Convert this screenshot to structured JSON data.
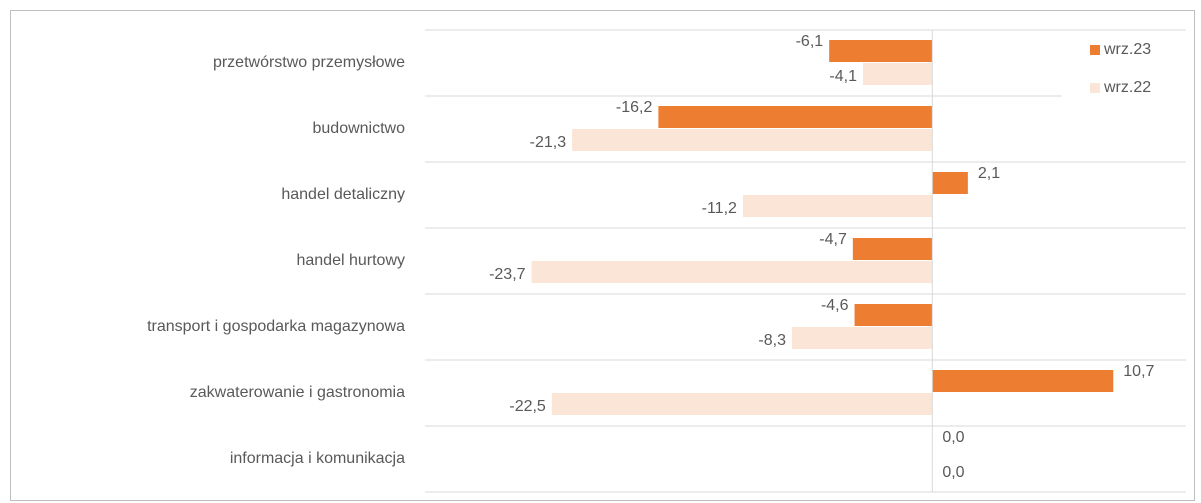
{
  "chart_data": {
    "type": "bar",
    "orientation": "horizontal",
    "categories": [
      "przetwórstwo przemysłowe",
      "budownictwo",
      "handel detaliczny",
      "handel hurtowy",
      "transport i gospodarka magazynowa",
      "zakwaterowanie i gastronomia",
      "informacja i komunikacja"
    ],
    "series": [
      {
        "name": "wrz.23",
        "color": "#ED7D31",
        "values": [
          -6.1,
          -16.2,
          2.1,
          -4.7,
          -4.6,
          10.7,
          0.0
        ],
        "value_labels": [
          "-6,1",
          "-16,2",
          "2,1",
          "-4,7",
          "-4,6",
          "10,7",
          "0,0"
        ]
      },
      {
        "name": "wrz.22",
        "color": "#FBE5D6",
        "values": [
          -4.1,
          -21.3,
          -11.2,
          -23.7,
          -8.3,
          -22.5,
          0.0
        ],
        "value_labels": [
          "-4,1",
          "-21,3",
          "-11,2",
          "-23,7",
          "-8,3",
          "-22,5",
          "0,0"
        ]
      }
    ],
    "xlim": [
      -30,
      15
    ],
    "grid": true,
    "legend": "top-right"
  }
}
